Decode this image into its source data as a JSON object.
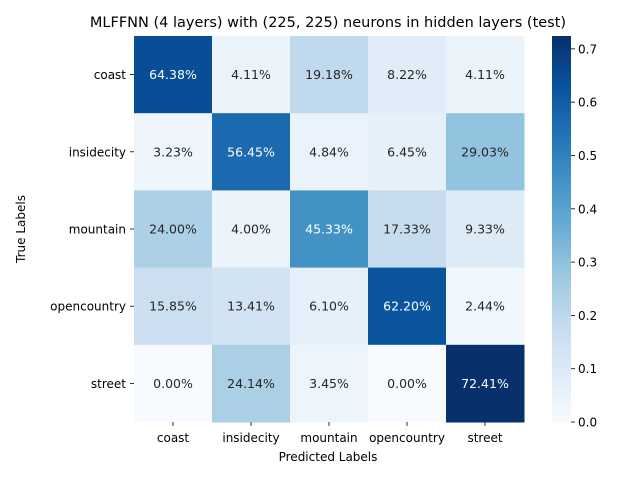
{
  "chart_data": {
    "type": "heatmap",
    "title": "MLFFNN (4 layers) with (225, 225) neurons in hidden layers (test)",
    "xlabel": "Predicted Labels",
    "ylabel": "True Labels",
    "x_categories": [
      "coast",
      "insidecity",
      "mountain",
      "opencountry",
      "street"
    ],
    "y_categories": [
      "coast",
      "insidecity",
      "mountain",
      "opencountry",
      "street"
    ],
    "values": [
      [
        0.6438,
        0.0411,
        0.1918,
        0.0822,
        0.0411
      ],
      [
        0.0323,
        0.5645,
        0.0484,
        0.0645,
        0.2903
      ],
      [
        0.24,
        0.04,
        0.4533,
        0.1733,
        0.0933
      ],
      [
        0.1585,
        0.1341,
        0.061,
        0.622,
        0.0244
      ],
      [
        0.0,
        0.2414,
        0.0345,
        0.0,
        0.7241
      ]
    ],
    "annotations": [
      [
        "64.38%",
        "4.11%",
        "19.18%",
        "8.22%",
        "4.11%"
      ],
      [
        "3.23%",
        "56.45%",
        "4.84%",
        "6.45%",
        "29.03%"
      ],
      [
        "24.00%",
        "4.00%",
        "45.33%",
        "17.33%",
        "9.33%"
      ],
      [
        "15.85%",
        "13.41%",
        "6.10%",
        "62.20%",
        "2.44%"
      ],
      [
        "0.00%",
        "24.14%",
        "3.45%",
        "0.00%",
        "72.41%"
      ]
    ],
    "colormap": "Blues",
    "colorbar": {
      "range": [
        0.0,
        0.7241
      ],
      "ticks": [
        0.0,
        0.1,
        0.2,
        0.3,
        0.4,
        0.5,
        0.6,
        0.7
      ],
      "tick_labels": [
        "0.0",
        "0.1",
        "0.2",
        "0.3",
        "0.4",
        "0.5",
        "0.6",
        "0.7"
      ]
    }
  }
}
